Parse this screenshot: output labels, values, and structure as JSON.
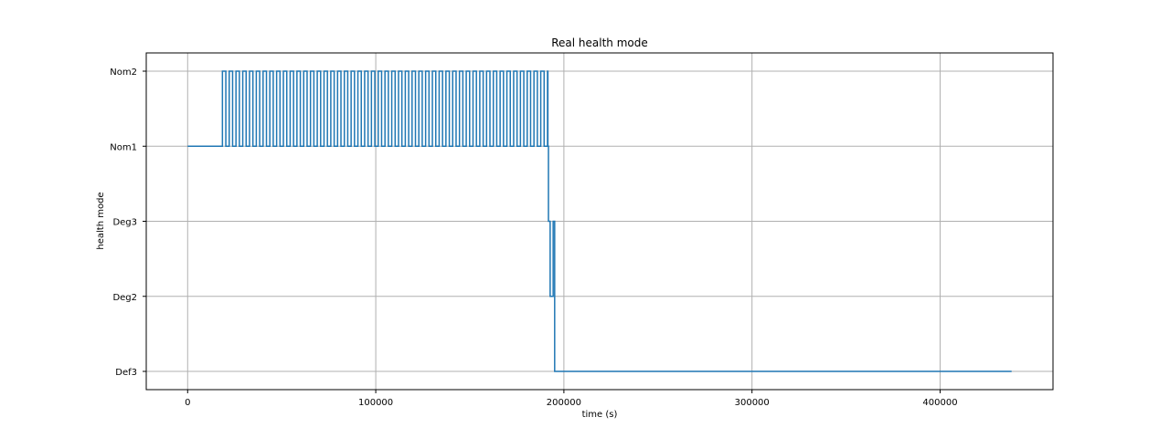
{
  "chart_data": {
    "type": "line",
    "title": "Real health mode",
    "xlabel": "time (s)",
    "ylabel": "health mode",
    "xlim": [
      -22000,
      460000
    ],
    "xticks": [
      0,
      100000,
      200000,
      300000,
      400000
    ],
    "xtick_labels": [
      "0",
      "100000",
      "200000",
      "300000",
      "400000"
    ],
    "y_categories": [
      "Def3",
      "Deg2",
      "Deg3",
      "Nom1",
      "Nom2"
    ],
    "grid": true,
    "line_color": "#1f77b4",
    "series": [
      {
        "step": true,
        "oscillation": {
          "start": 18500,
          "end": 191500,
          "period": 3600,
          "high_duration": 1800,
          "low_level": "Nom1",
          "high_level": "Nom2"
        },
        "points": [
          {
            "x": 0,
            "y": "Nom1"
          },
          {
            "x": 18500,
            "y": "Nom1"
          },
          {
            "x": 191500,
            "y": "Nom1"
          },
          {
            "x": 191800,
            "y": "Deg3"
          },
          {
            "x": 192700,
            "y": "Deg2"
          },
          {
            "x": 194300,
            "y": "Deg3"
          },
          {
            "x": 195100,
            "y": "Def3"
          },
          {
            "x": 438000,
            "y": "Def3"
          }
        ]
      }
    ]
  }
}
